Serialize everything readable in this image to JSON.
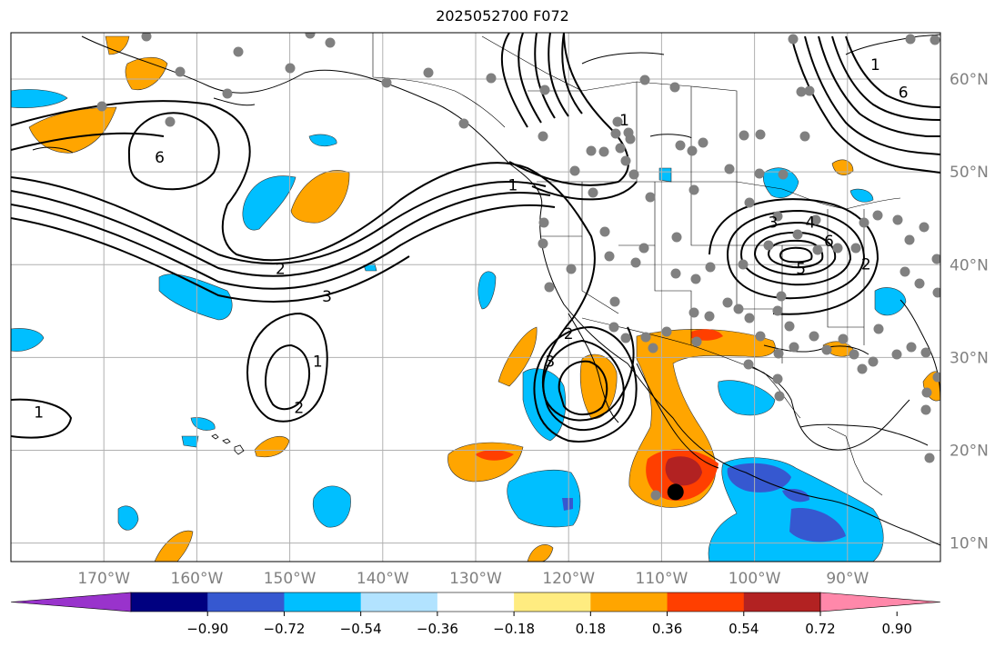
{
  "figure": {
    "title": "2025052700 F072"
  },
  "map": {
    "projection": "equirectangular",
    "lon_range": [
      -180,
      -80
    ],
    "lat_range": [
      8,
      65
    ],
    "gridlines": true,
    "lon_labels": [
      "170°W",
      "160°W",
      "150°W",
      "140°W",
      "130°W",
      "120°W",
      "110°W",
      "100°W",
      "90°W"
    ],
    "lat_labels": [
      "10°N",
      "20°N",
      "30°N",
      "40°N",
      "50°N",
      "60°N"
    ],
    "label_color": "#808080",
    "grid_color": "#b0b0b0",
    "contour_labels": [
      {
        "text": "1",
        "lon": -147,
        "lat": 29
      },
      {
        "text": "2",
        "lon": -149,
        "lat": 24
      },
      {
        "text": "1",
        "lon": -177,
        "lat": 23.5
      },
      {
        "text": "6",
        "lon": -164,
        "lat": 51
      },
      {
        "text": "2",
        "lon": -151,
        "lat": 39
      },
      {
        "text": "3",
        "lon": -146,
        "lat": 36
      },
      {
        "text": "1",
        "lon": -126,
        "lat": 48
      },
      {
        "text": "1",
        "lon": -114,
        "lat": 55
      },
      {
        "text": "3",
        "lon": -98,
        "lat": 44
      },
      {
        "text": "4",
        "lon": -94,
        "lat": 44
      },
      {
        "text": "6",
        "lon": -92,
        "lat": 42
      },
      {
        "text": "5",
        "lon": -95,
        "lat": 39
      },
      {
        "text": "2",
        "lon": -88,
        "lat": 39.5
      },
      {
        "text": "2",
        "lon": -120,
        "lat": 32
      },
      {
        "text": "3",
        "lon": -122,
        "lat": 29
      },
      {
        "text": "6",
        "lon": -84,
        "lat": 58
      },
      {
        "text": "1",
        "lon": -87,
        "lat": 61
      }
    ],
    "storm_marker": {
      "lon": -108.5,
      "lat": 15.5
    }
  },
  "colorbar": {
    "ticks": [
      "−0.90",
      "−0.72",
      "−0.54",
      "−0.36",
      "−0.18",
      "0.18",
      "0.36",
      "0.54",
      "0.72",
      "0.90"
    ],
    "colors": [
      "#9933cc",
      "#000080",
      "#3658d0",
      "#00bfff",
      "#b2e3ff",
      "#ffffff",
      "#ffec80",
      "#ffa500",
      "#ff3f00",
      "#b22222",
      "#ff88aa"
    ]
  }
}
